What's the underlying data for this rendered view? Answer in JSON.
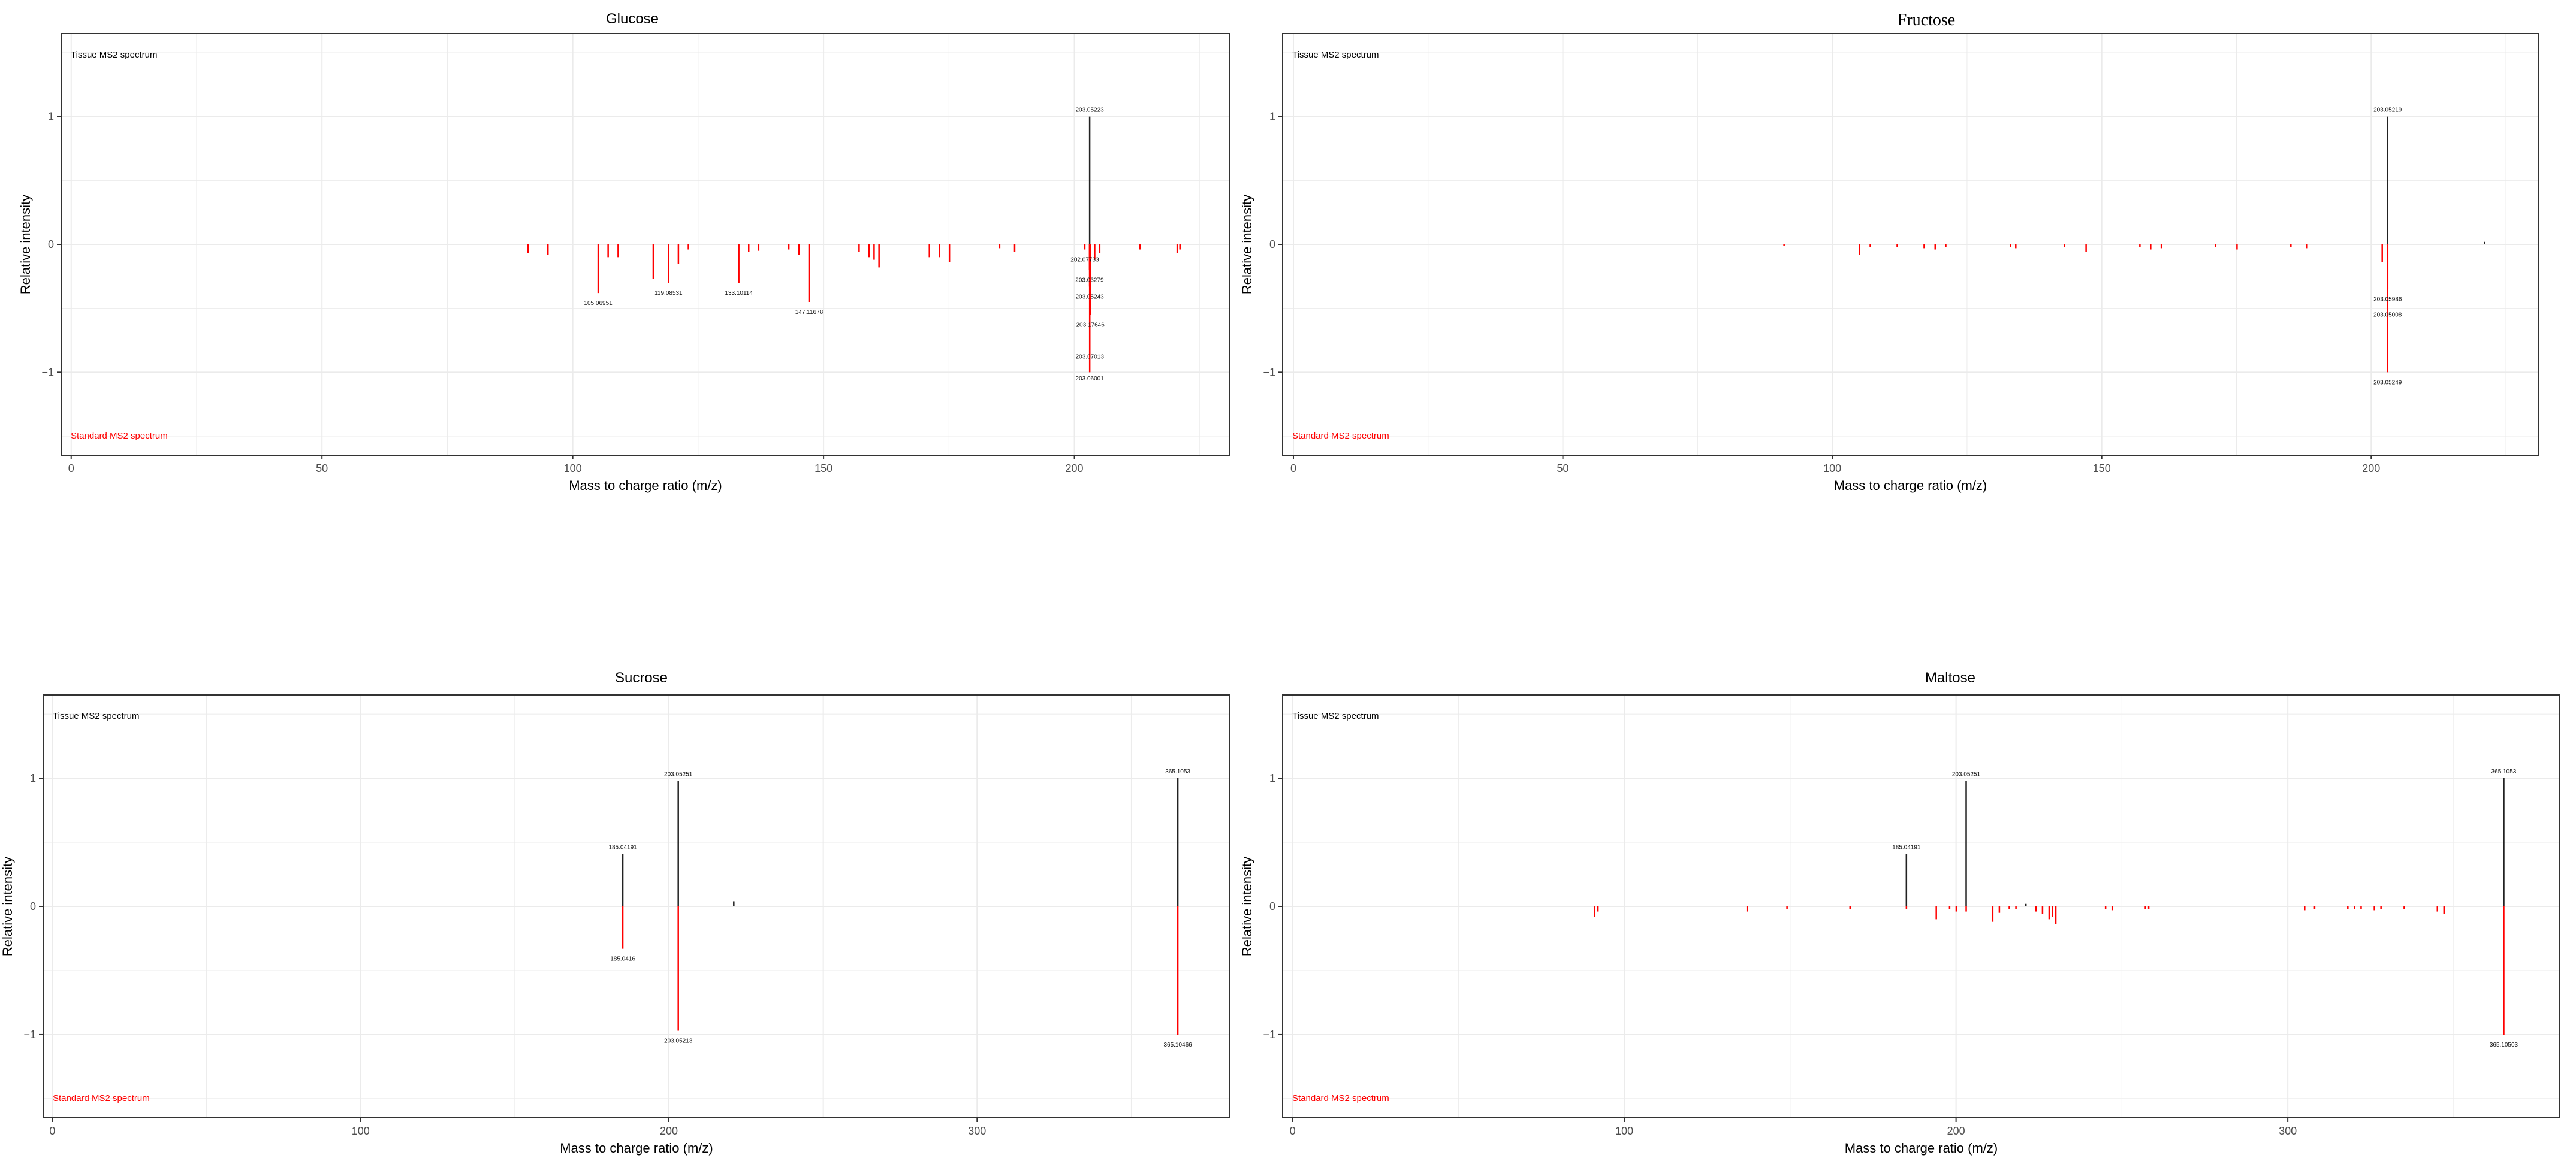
{
  "colors": {
    "tissue": "#222222",
    "standard": "#ff0000",
    "grid": "#ebebeb",
    "frame": "#333333"
  },
  "chart_data": [
    {
      "type": "bar",
      "title": "Glucose",
      "xlabel": "Mass to charge ratio (m/z)",
      "ylabel": "Relative intensity",
      "xlim": [
        -2,
        231
      ],
      "ylim": [
        -1.65,
        1.65
      ],
      "x_ticks": [
        0,
        50,
        100,
        150,
        200
      ],
      "y_ticks": [
        -1,
        0,
        1
      ],
      "grid": true,
      "series": [
        {
          "name": "Tissue MS2 spectrum",
          "x": [
            203.05223
          ],
          "y": [
            1.0
          ]
        },
        {
          "name": "Standard MS2 spectrum",
          "x": [
            91.05,
            95.05,
            105.06951,
            107.05,
            109.05,
            116.05,
            119.08531,
            121.06,
            123.05,
            133.10114,
            135.08,
            137.06,
            143.07,
            145.06,
            147.11678,
            157.08,
            159.08,
            160.07,
            161.06,
            171.1,
            173.1,
            175.1,
            185.1,
            188.1,
            202.07733,
            203.03279,
            203.05243,
            203.17646,
            203.07013,
            203.06001,
            204.05,
            205.05,
            213.1,
            220.5,
            221.05
          ],
          "y": [
            -0.07,
            -0.08,
            -0.38,
            -0.1,
            -0.1,
            -0.27,
            -0.3,
            -0.15,
            -0.04,
            -0.3,
            -0.06,
            -0.05,
            -0.04,
            -0.08,
            -0.45,
            -0.06,
            -0.1,
            -0.12,
            -0.18,
            -0.1,
            -0.1,
            -0.14,
            -0.03,
            -0.06,
            -0.04,
            -0.2,
            -0.33,
            -0.55,
            -0.88,
            -1.0,
            -0.12,
            -0.07,
            -0.04,
            -0.07,
            -0.04
          ]
        }
      ],
      "labels": [
        {
          "x": 203.05223,
          "y": 1.0,
          "text": "203.05223"
        },
        {
          "x": 105.06951,
          "y": -0.38,
          "text": "105.06951"
        },
        {
          "x": 119.08531,
          "y": -0.3,
          "text": "119.08531"
        },
        {
          "x": 133.10114,
          "y": -0.3,
          "text": "133.10114"
        },
        {
          "x": 147.11678,
          "y": -0.45,
          "text": "147.11678"
        },
        {
          "x": 202.07733,
          "y": -0.04,
          "text": "202.07733"
        },
        {
          "x": 203.03279,
          "y": -0.2,
          "text": "203.03279"
        },
        {
          "x": 203.05243,
          "y": -0.33,
          "text": "203.05243"
        },
        {
          "x": 203.17646,
          "y": -0.55,
          "text": "203.17646"
        },
        {
          "x": 203.07013,
          "y": -0.8,
          "text": "203.07013"
        },
        {
          "x": 203.06001,
          "y": -0.97,
          "text": "203.06001"
        }
      ]
    },
    {
      "type": "bar",
      "title": "Fructose",
      "xlabel": "Mass to charge ratio (m/z)",
      "ylabel": "Relative intensity",
      "xlim": [
        -2,
        231
      ],
      "ylim": [
        -1.65,
        1.65
      ],
      "x_ticks": [
        0,
        50,
        100,
        150,
        200
      ],
      "y_ticks": [
        -1,
        0,
        1
      ],
      "grid": true,
      "series": [
        {
          "name": "Tissue MS2 spectrum",
          "x": [
            203.05219,
            221.06
          ],
          "y": [
            1.0,
            0.02
          ]
        },
        {
          "name": "Standard MS2 spectrum",
          "x": [
            91.05,
            105.07,
            107.05,
            112.05,
            117.05,
            119.09,
            121.06,
            133.05,
            134.05,
            143.07,
            147.1,
            157.08,
            159.08,
            161.06,
            171.1,
            175.1,
            185.1,
            188.1,
            202.05,
            203.05986,
            203.05008,
            203.05249
          ],
          "y": [
            -0.01,
            -0.08,
            -0.02,
            -0.02,
            -0.03,
            -0.04,
            -0.02,
            -0.02,
            -0.03,
            -0.02,
            -0.06,
            -0.02,
            -0.04,
            -0.03,
            -0.02,
            -0.04,
            -0.02,
            -0.03,
            -0.14,
            -0.35,
            -0.47,
            -1.0
          ]
        }
      ],
      "labels": [
        {
          "x": 203.05219,
          "y": 1.0,
          "text": "203.05219"
        },
        {
          "x": 203.05986,
          "y": -0.35,
          "text": "203.05986"
        },
        {
          "x": 203.05008,
          "y": -0.47,
          "text": "203.05008"
        },
        {
          "x": 203.05249,
          "y": -1.0,
          "text": "203.05249"
        }
      ]
    },
    {
      "type": "bar",
      "title": "Sucrose",
      "xlabel": "Mass to charge ratio (m/z)",
      "ylabel": "Relative intensity",
      "xlim": [
        -3,
        382
      ],
      "ylim": [
        -1.65,
        1.65
      ],
      "x_ticks": [
        0,
        100,
        200,
        300
      ],
      "y_ticks": [
        -1,
        0,
        1
      ],
      "grid": true,
      "series": [
        {
          "name": "Tissue MS2 spectrum",
          "x": [
            185.04191,
            203.05251,
            221.06,
            365.1053
          ],
          "y": [
            0.41,
            0.98,
            0.04,
            1.0
          ]
        },
        {
          "name": "Standard MS2 spectrum",
          "x": [
            185.0416,
            203.05213,
            365.10466
          ],
          "y": [
            -0.33,
            -0.97,
            -1.0
          ]
        }
      ],
      "labels": [
        {
          "x": 185.04191,
          "y": 0.41,
          "text": "185.04191"
        },
        {
          "x": 203.05251,
          "y": 0.98,
          "text": "203.05251"
        },
        {
          "x": 365.1053,
          "y": 1.0,
          "text": "365.1053"
        },
        {
          "x": 185.0416,
          "y": -0.33,
          "text": "185.0416"
        },
        {
          "x": 203.05213,
          "y": -0.97,
          "text": "203.05213"
        },
        {
          "x": 365.10466,
          "y": -1.0,
          "text": "365.10466"
        }
      ]
    },
    {
      "type": "bar",
      "title": "Maltose",
      "xlabel": "Mass to charge ratio (m/z)",
      "ylabel": "Relative intensity",
      "xlim": [
        -3,
        382
      ],
      "ylim": [
        -1.65,
        1.65
      ],
      "x_ticks": [
        0,
        100,
        200,
        300
      ],
      "y_ticks": [
        -1,
        0,
        1
      ],
      "grid": true,
      "series": [
        {
          "name": "Tissue MS2 spectrum",
          "x": [
            185.04191,
            203.05251,
            221.06,
            365.1053
          ],
          "y": [
            0.41,
            0.98,
            0.02,
            1.0
          ]
        },
        {
          "name": "Standard MS2 spectrum",
          "x": [
            91.05,
            92.05,
            137.05,
            149.05,
            168.05,
            185.05,
            194.05,
            198.06,
            200.06,
            203.06,
            211.06,
            213.06,
            216.06,
            218.06,
            224.07,
            226.07,
            228.07,
            229.07,
            230.07,
            245.08,
            247.08,
            257.08,
            258.08,
            305.09,
            308.09,
            318.1,
            320.1,
            322.1,
            326.1,
            328.1,
            335.1,
            345.1,
            347.1,
            365.10503
          ],
          "y": [
            -0.08,
            -0.04,
            -0.04,
            -0.02,
            -0.02,
            -0.02,
            -0.1,
            -0.02,
            -0.04,
            -0.04,
            -0.12,
            -0.05,
            -0.02,
            -0.02,
            -0.04,
            -0.06,
            -0.1,
            -0.08,
            -0.14,
            -0.02,
            -0.03,
            -0.02,
            -0.02,
            -0.03,
            -0.02,
            -0.02,
            -0.02,
            -0.02,
            -0.03,
            -0.02,
            -0.02,
            -0.04,
            -0.06,
            -1.0
          ]
        }
      ],
      "labels": [
        {
          "x": 185.04191,
          "y": 0.41,
          "text": "185.04191"
        },
        {
          "x": 203.05251,
          "y": 0.98,
          "text": "203.05251"
        },
        {
          "x": 365.1053,
          "y": 1.0,
          "text": "365.1053"
        },
        {
          "x": 365.10503,
          "y": -1.0,
          "text": "365.10503"
        }
      ]
    }
  ]
}
